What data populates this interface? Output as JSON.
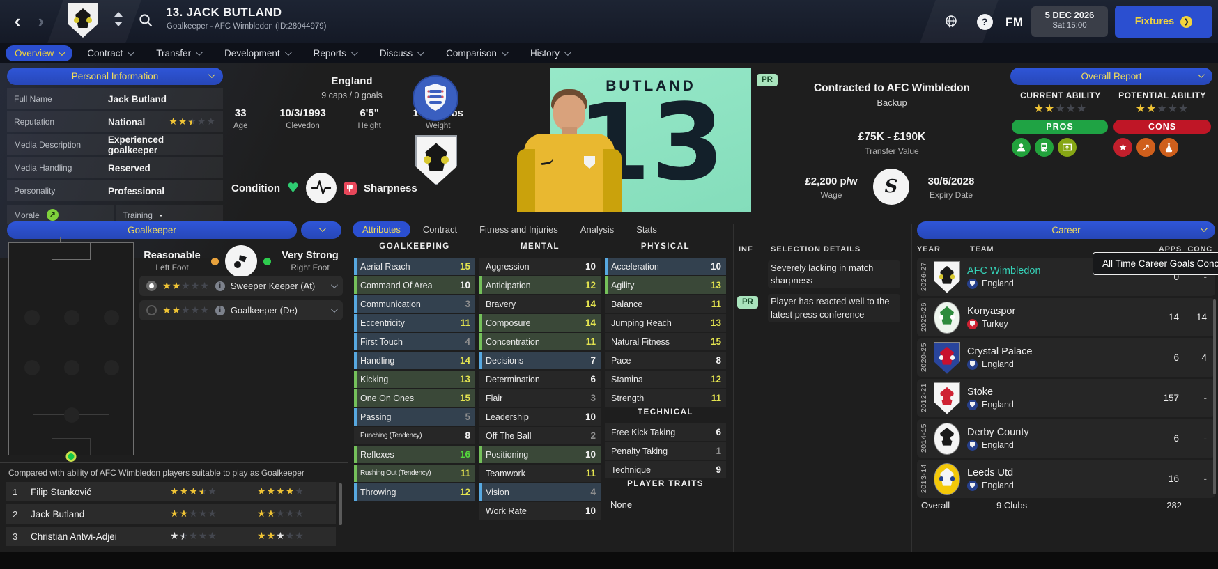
{
  "titlebar": {
    "player_title": "13. JACK BUTLAND",
    "subtitle": "Goalkeeper - AFC Wimbledon (ID:28044979)",
    "fm_logo": "FM",
    "date_line1": "5 DEC 2026",
    "date_line2": "Sat 15:00",
    "fixtures_label": "Fixtures"
  },
  "nav_tabs": [
    {
      "label": "Overview",
      "selected": true
    },
    {
      "label": "Contract",
      "selected": false
    },
    {
      "label": "Transfer",
      "selected": false
    },
    {
      "label": "Development",
      "selected": false
    },
    {
      "label": "Reports",
      "selected": false
    },
    {
      "label": "Discuss",
      "selected": false
    },
    {
      "label": "Comparison",
      "selected": false
    },
    {
      "label": "History",
      "selected": false
    }
  ],
  "personal_info": {
    "header": "Personal Information",
    "rows": [
      {
        "label": "Full Name",
        "value": "Jack Butland",
        "stars": ""
      },
      {
        "label": "Reputation",
        "value": "National",
        "stars": "GGH--"
      },
      {
        "label": "Media Description",
        "value": "Experienced goalkeeper",
        "stars": ""
      },
      {
        "label": "Media Handling",
        "value": "Reserved",
        "stars": ""
      },
      {
        "label": "Personality",
        "value": "Professional",
        "stars": ""
      }
    ],
    "morale_label": "Morale",
    "training_label": "Training",
    "training_value": "-"
  },
  "bio": {
    "nation": "England",
    "caps": "9 caps / 0 goals",
    "stats": [
      {
        "value": "33",
        "label": "Age"
      },
      {
        "value": "10/3/1993",
        "label": "Clevedon"
      },
      {
        "value": "6'5\"",
        "label": "Height"
      },
      {
        "value": "14 st 9 lbs",
        "label": "Weight"
      }
    ],
    "condition_label": "Condition",
    "sharpness_label": "Sharpness"
  },
  "shirt": {
    "name": "BUTLAND",
    "number": "13",
    "pr_badge": "PR"
  },
  "contract": {
    "title": "Contracted to AFC Wimbledon",
    "status": "Backup",
    "transfer_value": "£75K - £190K",
    "transfer_value_label": "Transfer Value",
    "wage": "£2,200 p/w",
    "wage_label": "Wage",
    "sponsor_glyph": "S",
    "expiry": "30/6/2028",
    "expiry_label": "Expiry Date"
  },
  "overall_report": {
    "header": "Overall Report",
    "current_ability_label": "CURRENT ABILITY",
    "current_ability_stars": "GG---",
    "potential_ability_label": "POTENTIAL ABILITY",
    "potential_ability_stars": "GG---",
    "pros_label": "PROS",
    "cons_label": "CONS",
    "pros_color": "#1fa344",
    "cons_color": "#bf1626",
    "pros_icons": [
      {
        "name": "mind-icon",
        "bg": "#22a23c"
      },
      {
        "name": "report-check-icon",
        "bg": "#22a23c"
      },
      {
        "name": "pitch-icon",
        "bg": "#86a614"
      }
    ],
    "cons_icons": [
      {
        "name": "star-icon",
        "bg": "#c21f2c",
        "glyph": "★"
      },
      {
        "name": "trend-up-icon",
        "bg": "#cf5f1c",
        "glyph": "↗"
      },
      {
        "name": "flask-icon",
        "bg": "#cf5f1c"
      }
    ]
  },
  "position_panel": {
    "header": "Goalkeeper",
    "left_foot_rating": "Reasonable",
    "left_foot_label": "Left Foot",
    "left_foot_color": "#e8a23c",
    "right_foot_rating": "Very Strong",
    "right_foot_label": "Right Foot",
    "right_foot_color": "#2ecc4e",
    "roles": [
      {
        "stars": "GG---",
        "name": "Sweeper Keeper (At)",
        "selected": true
      },
      {
        "stars": "GG---",
        "name": "Goalkeeper (De)",
        "selected": false
      }
    ],
    "compare_note": "Compared with ability of AFC Wimbledon players suitable to play as Goalkeeper",
    "compare_rows": [
      {
        "rank": "1",
        "name": "Filip Stanković",
        "ability": "GGGH-",
        "potential": "GGGG-"
      },
      {
        "rank": "2",
        "name": "Jack Butland",
        "ability": "GG---",
        "potential": "GG---"
      },
      {
        "rank": "3",
        "name": "Christian Antwi-Adjei",
        "ability": "Wh---",
        "potential": "GGW--"
      }
    ]
  },
  "attributes": {
    "tabs": [
      {
        "label": "Attributes",
        "selected": true
      },
      {
        "label": "Contract",
        "selected": false
      },
      {
        "label": "Fitness and Injuries",
        "selected": false
      },
      {
        "label": "Analysis",
        "selected": false
      },
      {
        "label": "Stats",
        "selected": false
      }
    ],
    "columns": [
      {
        "sections": [
          {
            "title": "GOALKEEPING",
            "rows": [
              {
                "name": "Aerial Reach",
                "value": 15,
                "tint": "blue"
              },
              {
                "name": "Command Of Area",
                "value": 10,
                "tint": "green"
              },
              {
                "name": "Communication",
                "value": 3,
                "tint": "blue"
              },
              {
                "name": "Eccentricity",
                "value": 11,
                "tint": "blue"
              },
              {
                "name": "First Touch",
                "value": 4,
                "tint": "blue"
              },
              {
                "name": "Handling",
                "value": 14,
                "tint": "blue"
              },
              {
                "name": "Kicking",
                "value": 13,
                "tint": "green"
              },
              {
                "name": "One On Ones",
                "value": 15,
                "tint": "green"
              },
              {
                "name": "Passing",
                "value": 5,
                "tint": "blue"
              },
              {
                "name": "Punching (Tendency)",
                "value": 8,
                "tint": "none"
              },
              {
                "name": "Reflexes",
                "value": 16,
                "tint": "green"
              },
              {
                "name": "Rushing Out (Tendency)",
                "value": 11,
                "tint": "green"
              },
              {
                "name": "Throwing",
                "value": 12,
                "tint": "blue"
              }
            ]
          }
        ]
      },
      {
        "sections": [
          {
            "title": "MENTAL",
            "rows": [
              {
                "name": "Aggression",
                "value": 10,
                "tint": "none"
              },
              {
                "name": "Anticipation",
                "value": 12,
                "tint": "green"
              },
              {
                "name": "Bravery",
                "value": 14,
                "tint": "none"
              },
              {
                "name": "Composure",
                "value": 14,
                "tint": "green"
              },
              {
                "name": "Concentration",
                "value": 11,
                "tint": "green"
              },
              {
                "name": "Decisions",
                "value": 7,
                "tint": "blue"
              },
              {
                "name": "Determination",
                "value": 6,
                "tint": "none"
              },
              {
                "name": "Flair",
                "value": 3,
                "tint": "none"
              },
              {
                "name": "Leadership",
                "value": 10,
                "tint": "none"
              },
              {
                "name": "Off The Ball",
                "value": 2,
                "tint": "none"
              },
              {
                "name": "Positioning",
                "value": 10,
                "tint": "green"
              },
              {
                "name": "Teamwork",
                "value": 11,
                "tint": "none"
              },
              {
                "name": "Vision",
                "value": 4,
                "tint": "blue"
              },
              {
                "name": "Work Rate",
                "value": 10,
                "tint": "none"
              }
            ]
          }
        ]
      },
      {
        "sections": [
          {
            "title": "PHYSICAL",
            "rows": [
              {
                "name": "Acceleration",
                "value": 10,
                "tint": "blue"
              },
              {
                "name": "Agility",
                "value": 13,
                "tint": "green"
              },
              {
                "name": "Balance",
                "value": 11,
                "tint": "none"
              },
              {
                "name": "Jumping Reach",
                "value": 13,
                "tint": "none"
              },
              {
                "name": "Natural Fitness",
                "value": 15,
                "tint": "none"
              },
              {
                "name": "Pace",
                "value": 8,
                "tint": "none"
              },
              {
                "name": "Stamina",
                "value": 12,
                "tint": "none"
              },
              {
                "name": "Strength",
                "value": 11,
                "tint": "none"
              }
            ]
          },
          {
            "title": "TECHNICAL",
            "rows": [
              {
                "name": "Free Kick Taking",
                "value": 6,
                "tint": "none"
              },
              {
                "name": "Penalty Taking",
                "value": 1,
                "tint": "none"
              },
              {
                "name": "Technique",
                "value": 9,
                "tint": "none"
              }
            ]
          },
          {
            "title": "PLAYER TRAITS",
            "rows": [],
            "empty_label": "None"
          }
        ]
      }
    ]
  },
  "selection_details": {
    "col1_header": "INF",
    "col2_header": "SELECTION DETAILS",
    "items": [
      {
        "badge": "",
        "text": "Severely lacking in match sharpness"
      },
      {
        "badge": "PR",
        "text": "Player has reacted well to the latest press conference"
      }
    ]
  },
  "career": {
    "header": "Career",
    "col_year": "YEAR",
    "col_team": "TEAM",
    "col_apps": "APPS",
    "col_conc": "CONC",
    "tooltip": "All Time Career Goals Conceded",
    "rows": [
      {
        "year": "2026-27",
        "team": "AFC Wimbledon",
        "team_color": "#35d1b7",
        "nation": "England",
        "flag": "#27408b",
        "apps": "0",
        "conc": "-",
        "shape": "shield",
        "crest_bg": "#f5f5f5",
        "crest_main": "#1a1a1a",
        "crest_dot": "#d8c830"
      },
      {
        "year": "2025-26",
        "team": "Konyaspor",
        "team_color": "#f0f0f0",
        "nation": "Turkey",
        "flag": "#cf2233",
        "apps": "14",
        "conc": "14",
        "shape": "circle",
        "crest_bg": "#eef5ee",
        "crest_main": "#2e8b3d",
        "crest_dot": "#ffffff"
      },
      {
        "year": "2020-25",
        "team": "Crystal Palace",
        "team_color": "#f0f0f0",
        "nation": "England",
        "flag": "#27408b",
        "apps": "6",
        "conc": "4",
        "shape": "shield",
        "crest_bg": "#29459c",
        "crest_main": "#c8102e",
        "crest_dot": "#f5f5f5"
      },
      {
        "year": "2012-21",
        "team": "Stoke",
        "team_color": "#f0f0f0",
        "nation": "England",
        "flag": "#27408b",
        "apps": "157",
        "conc": "-",
        "shape": "shield",
        "crest_bg": "#f5f5f5",
        "crest_main": "#cf2233",
        "crest_dot": "#f5f5f5"
      },
      {
        "year": "2014-15",
        "team": "Derby County",
        "team_color": "#f0f0f0",
        "nation": "England",
        "flag": "#27408b",
        "apps": "6",
        "conc": "-",
        "shape": "circle",
        "crest_bg": "#f5f5f5",
        "crest_main": "#1a1a1a",
        "crest_dot": "#f5f5f5"
      },
      {
        "year": "2013-14",
        "team": "Leeds Utd",
        "team_color": "#f0f0f0",
        "nation": "England",
        "flag": "#27408b",
        "apps": "16",
        "conc": "-",
        "shape": "circle",
        "crest_bg": "#f3c809",
        "crest_main": "#f5f5f5",
        "crest_dot": "#23408e"
      }
    ],
    "overall_label": "Overall",
    "overall_clubs": "9 Clubs",
    "overall_apps": "282",
    "overall_conc": "-"
  }
}
